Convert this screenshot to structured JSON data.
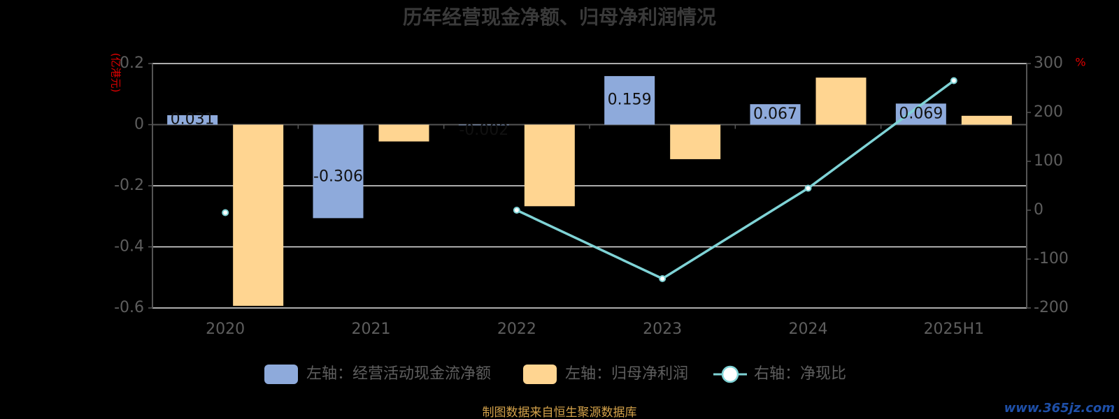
{
  "chart_data": {
    "type": "bar",
    "title": "历年经营现金净额、归母净利润情况",
    "categories": [
      "2020",
      "2021",
      "2022",
      "2023",
      "2024",
      "2025H1"
    ],
    "left_axis": {
      "unit": "(亿港元)",
      "ylim": [
        -0.6,
        0.2
      ],
      "ticks": [
        "0.2",
        "0",
        "-0.2",
        "-0.4",
        "-0.6"
      ]
    },
    "right_axis": {
      "unit": "%",
      "ylim": [
        -200,
        300
      ],
      "ticks": [
        "300",
        "200",
        "100",
        "0",
        "-100",
        "-200"
      ]
    },
    "series": [
      {
        "name": "左轴：经营活动现金流净额",
        "kind": "bar",
        "axis": "left",
        "color": "#8eaadb",
        "values": [
          0.031,
          -0.306,
          -0.002,
          0.159,
          0.067,
          0.069
        ],
        "labels": [
          "0.031",
          "-0.306",
          "-0.002",
          "0.159",
          "0.067",
          "0.069"
        ]
      },
      {
        "name": "左轴：归母净利润",
        "kind": "bar",
        "axis": "left",
        "color": "#ffd591",
        "values": [
          -0.593,
          -0.055,
          -0.267,
          -0.113,
          0.154,
          0.029
        ]
      },
      {
        "name": "右轴：净现比",
        "kind": "line",
        "axis": "right",
        "color": "#7fd3d6",
        "values": [
          -5,
          null,
          0,
          -140,
          45,
          265
        ]
      }
    ],
    "grid": true,
    "legend_position": "bottom"
  },
  "source": "制图数据来自恒生聚源数据库",
  "watermark": "www.365jz.com"
}
